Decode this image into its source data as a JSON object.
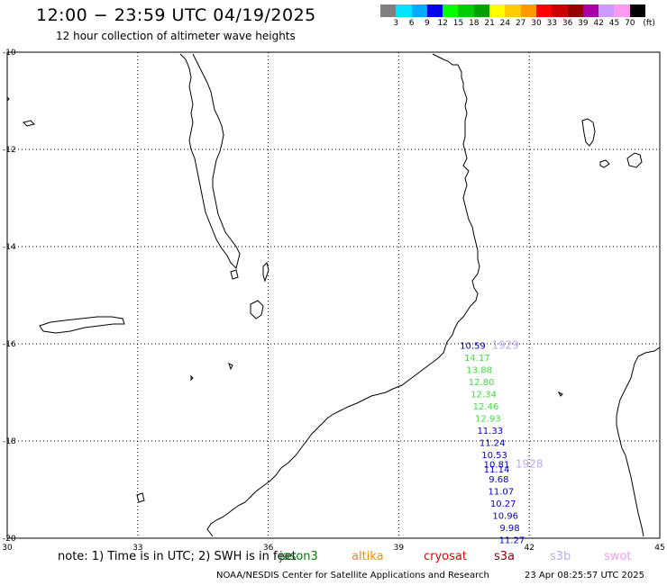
{
  "header": {
    "title": "12:00 − 23:59 UTC 04/19/2025",
    "subtitle": "12 hour collection of altimeter wave heights"
  },
  "legend": {
    "colors": [
      "#808080",
      "#00e5ff",
      "#00aaff",
      "#0000ee",
      "#00ff00",
      "#00cc00",
      "#00a000",
      "#ffff00",
      "#ffcc00",
      "#ff9900",
      "#ff0000",
      "#cc0000",
      "#990000",
      "#aa00aa",
      "#cc99ff",
      "#ff99ee",
      "#000000"
    ],
    "labels": [
      "3",
      "6",
      "9",
      "12",
      "15",
      "18",
      "21",
      "24",
      "27",
      "30",
      "33",
      "36",
      "39",
      "42",
      "45",
      "70",
      "(ft)"
    ]
  },
  "axes": {
    "x_ticks": [
      "30",
      "33",
      "36",
      "39",
      "42",
      "45"
    ],
    "y_ticks": [
      "-10",
      "-12",
      "-14",
      "-16",
      "-18",
      "-20"
    ]
  },
  "map_data": {
    "lon_range": [
      30,
      45
    ],
    "lat_range": [
      -20,
      -10
    ],
    "gridlines": true,
    "observations": [
      {
        "lon": 40.7,
        "lat": -16.1,
        "value": "10.59",
        "color": "#0000cc"
      },
      {
        "lon": 40.8,
        "lat": -16.35,
        "value": "14.17",
        "color": "#44dd44"
      },
      {
        "lon": 40.85,
        "lat": -16.6,
        "value": "13.88",
        "color": "#44dd44"
      },
      {
        "lon": 40.9,
        "lat": -16.85,
        "value": "12.80",
        "color": "#44dd44"
      },
      {
        "lon": 40.95,
        "lat": -17.1,
        "value": "12.34",
        "color": "#44dd44"
      },
      {
        "lon": 41.0,
        "lat": -17.35,
        "value": "12.46",
        "color": "#44dd44"
      },
      {
        "lon": 41.05,
        "lat": -17.6,
        "value": "12.93",
        "color": "#44dd44"
      },
      {
        "lon": 41.1,
        "lat": -17.85,
        "value": "11.33",
        "color": "#0000cc"
      },
      {
        "lon": 41.15,
        "lat": -18.1,
        "value": "11.24",
        "color": "#0000cc"
      },
      {
        "lon": 41.2,
        "lat": -18.35,
        "value": "10.53",
        "color": "#0000cc"
      },
      {
        "lon": 41.25,
        "lat": -18.55,
        "value": "10.81",
        "color": "#0000cc"
      },
      {
        "lon": 41.25,
        "lat": -18.65,
        "value": "11.14",
        "color": "#0000cc"
      },
      {
        "lon": 41.3,
        "lat": -18.85,
        "value": "9.68",
        "color": "#0000cc"
      },
      {
        "lon": 41.35,
        "lat": -19.1,
        "value": "11.07",
        "color": "#0000cc"
      },
      {
        "lon": 41.4,
        "lat": -19.35,
        "value": "10.27",
        "color": "#0000cc"
      },
      {
        "lon": 41.45,
        "lat": -19.6,
        "value": "10.96",
        "color": "#0000cc"
      },
      {
        "lon": 41.55,
        "lat": -19.85,
        "value": "9.98",
        "color": "#0000cc"
      },
      {
        "lon": 41.6,
        "lat": -20.1,
        "value": "11.27",
        "color": "#0000cc"
      }
    ],
    "time_labels": [
      {
        "lon": 41.45,
        "lat": -16.1,
        "value": "1929",
        "color": "#bbaaee"
      },
      {
        "lon": 42.0,
        "lat": -18.55,
        "value": "1928",
        "color": "#bbaaee"
      }
    ]
  },
  "footer": {
    "note": "note:  1) Time is in UTC;  2) SWH is in feet",
    "satellites": [
      {
        "name": "jason3",
        "color": "#008000"
      },
      {
        "name": "altika",
        "color": "#ff8c00"
      },
      {
        "name": "cryosat",
        "color": "#ee0000"
      },
      {
        "name": "s3a",
        "color": "#880000"
      },
      {
        "name": "s3b",
        "color": "#bbaaee"
      },
      {
        "name": "swot",
        "color": "#ff99ee"
      }
    ],
    "credit": "NOAA/NESDIS Center for Satellite Applications and Research",
    "timestamp": "23 Apr 08:25:57 UTC 2025"
  }
}
